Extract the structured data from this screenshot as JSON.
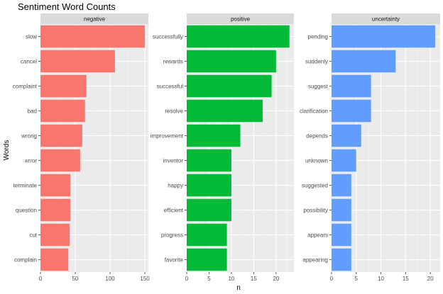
{
  "chart_data": {
    "type": "bar",
    "orientation": "horizontal",
    "title": "Sentiment Word Counts",
    "xlabel": "n",
    "ylabel": "Words",
    "grid": true,
    "legend": "none",
    "facets": [
      {
        "name": "negative",
        "color": "#F8766D",
        "xlim": [
          0,
          155
        ],
        "xticks": [
          0,
          50,
          100,
          150
        ],
        "categories": [
          "slow",
          "cancel",
          "complaint",
          "bad",
          "wrong",
          "error",
          "terminate",
          "question",
          "cut",
          "complain"
        ],
        "values": [
          150,
          107,
          66,
          64,
          60,
          57,
          43,
          43,
          42,
          40
        ]
      },
      {
        "name": "positive",
        "color": "#00BA38",
        "xlim": [
          0,
          24
        ],
        "xticks": [
          0,
          5,
          10,
          15,
          20
        ],
        "categories": [
          "successfully",
          "rewards",
          "successful",
          "resolve",
          "improvement",
          "inventor",
          "happy",
          "efficient",
          "progress",
          "favorite"
        ],
        "values": [
          23,
          20,
          19,
          17,
          12,
          10,
          10,
          10,
          9,
          9
        ]
      },
      {
        "name": "uncertainty",
        "color": "#619CFF",
        "xlim": [
          0,
          22
        ],
        "xticks": [
          0,
          5,
          10,
          15,
          20
        ],
        "categories": [
          "pending",
          "suddenly",
          "suggest",
          "clarification",
          "depends",
          "unknown",
          "suggested",
          "possibility",
          "appears",
          "appearing"
        ],
        "values": [
          21,
          13,
          8,
          8,
          6,
          5,
          4,
          4,
          4,
          4
        ]
      }
    ]
  }
}
